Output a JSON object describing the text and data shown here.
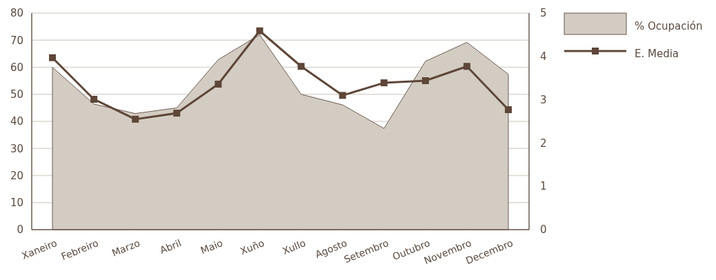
{
  "chart_data": {
    "type": "area",
    "categories": [
      "Xaneiro",
      "Febreiro",
      "Marzo",
      "Abril",
      "Maio",
      "Xuño",
      "Xullo",
      "Agosto",
      "Setembro",
      "Outubro",
      "Novembro",
      "Decembro"
    ],
    "series": [
      {
        "name": "% Ocupación",
        "color": "#d3ccc3",
        "values": [
          60,
          46.4,
          42.9,
          45,
          62.8,
          72,
          50,
          46.1,
          37.4,
          62.2,
          69.2,
          57.4
        ]
      },
      {
        "name": "E. Media",
        "type": "line",
        "axis": "y2",
        "marker": "square",
        "color": "#5e4638",
        "values": [
          3.97,
          3.01,
          2.55,
          2.69,
          3.36,
          4.59,
          3.77,
          3.1,
          3.39,
          3.44,
          3.77,
          2.77
        ]
      }
    ],
    "ylim": [
      0,
      80
    ],
    "yticks": [
      0,
      10,
      20,
      30,
      40,
      50,
      60,
      70,
      80
    ],
    "y2lim": [
      0,
      5
    ],
    "y2ticks": [
      0,
      1,
      2,
      3,
      4,
      5
    ],
    "grid": "y",
    "legend": "top right"
  }
}
